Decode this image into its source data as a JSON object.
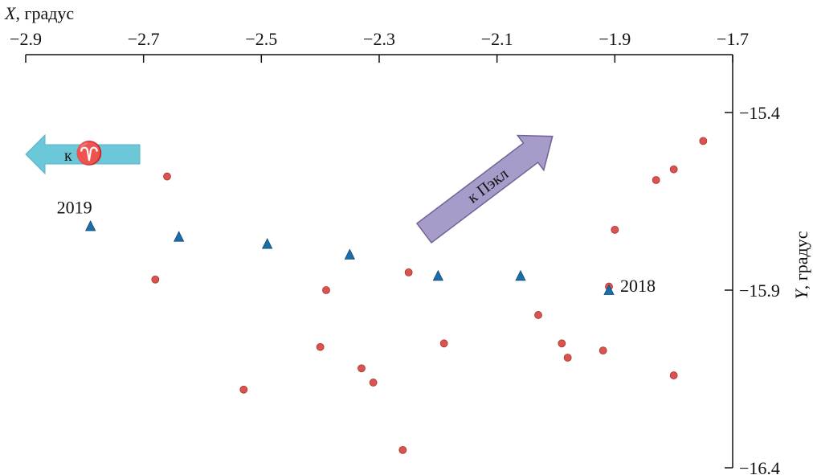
{
  "chart_data": {
    "type": "scatter",
    "x_axis": {
      "title_var": "X",
      "title_unit": ", градус",
      "lim": [
        -2.9,
        -1.7
      ],
      "ticks": [
        -2.9,
        -2.7,
        -2.5,
        -2.3,
        -2.1,
        -1.9,
        -1.7
      ],
      "tick_labels": [
        "−2.9",
        "−2.7",
        "−2.5",
        "−2.3",
        "−2.1",
        "−1.9",
        "−1.7"
      ],
      "position": "top",
      "reversed": false
    },
    "y_axis": {
      "title_var": "Y",
      "title_unit": ", градус",
      "lim": [
        -16.4,
        -15.4
      ],
      "ticks": [
        -15.4,
        -15.9,
        -16.4
      ],
      "tick_labels": [
        "−15.4",
        "−15.9",
        "−16.4"
      ],
      "position": "right"
    },
    "grid": false,
    "series": [
      {
        "marker": "circle",
        "color": "#d9534f",
        "points": [
          [
            -2.66,
            -15.58
          ],
          [
            -2.68,
            -15.87
          ],
          [
            -2.53,
            -16.18
          ],
          [
            -2.39,
            -15.9
          ],
          [
            -2.4,
            -16.06
          ],
          [
            -2.33,
            -16.12
          ],
          [
            -2.31,
            -16.16
          ],
          [
            -2.25,
            -15.85
          ],
          [
            -2.26,
            -16.35
          ],
          [
            -2.19,
            -16.05
          ],
          [
            -2.03,
            -15.97
          ],
          [
            -1.99,
            -16.05
          ],
          [
            -1.98,
            -16.09
          ],
          [
            -1.92,
            -16.07
          ],
          [
            -1.91,
            -15.89
          ],
          [
            -1.9,
            -15.73
          ],
          [
            -1.83,
            -15.59
          ],
          [
            -1.8,
            -15.56
          ],
          [
            -1.8,
            -16.14
          ],
          [
            -1.75,
            -15.48
          ]
        ]
      },
      {
        "marker": "triangle",
        "color": "#1b6fa8",
        "points": [
          [
            -2.79,
            -15.72
          ],
          [
            -2.64,
            -15.75
          ],
          [
            -2.49,
            -15.77
          ],
          [
            -2.35,
            -15.8
          ],
          [
            -2.2,
            -15.86
          ],
          [
            -2.06,
            -15.86
          ],
          [
            -1.91,
            -15.9
          ]
        ]
      }
    ],
    "annotations": [
      {
        "text": "2019",
        "x": -2.79,
        "y": -15.72
      },
      {
        "text": "2018",
        "x": -1.91,
        "y": -15.9
      }
    ],
    "arrows": [
      {
        "label_prefix": "к",
        "label_symbol": "♈",
        "color": "#6cc8d8",
        "direction": "left"
      },
      {
        "label": "к Пэкл",
        "color": "#a79bc9",
        "direction": "up-right"
      }
    ]
  }
}
